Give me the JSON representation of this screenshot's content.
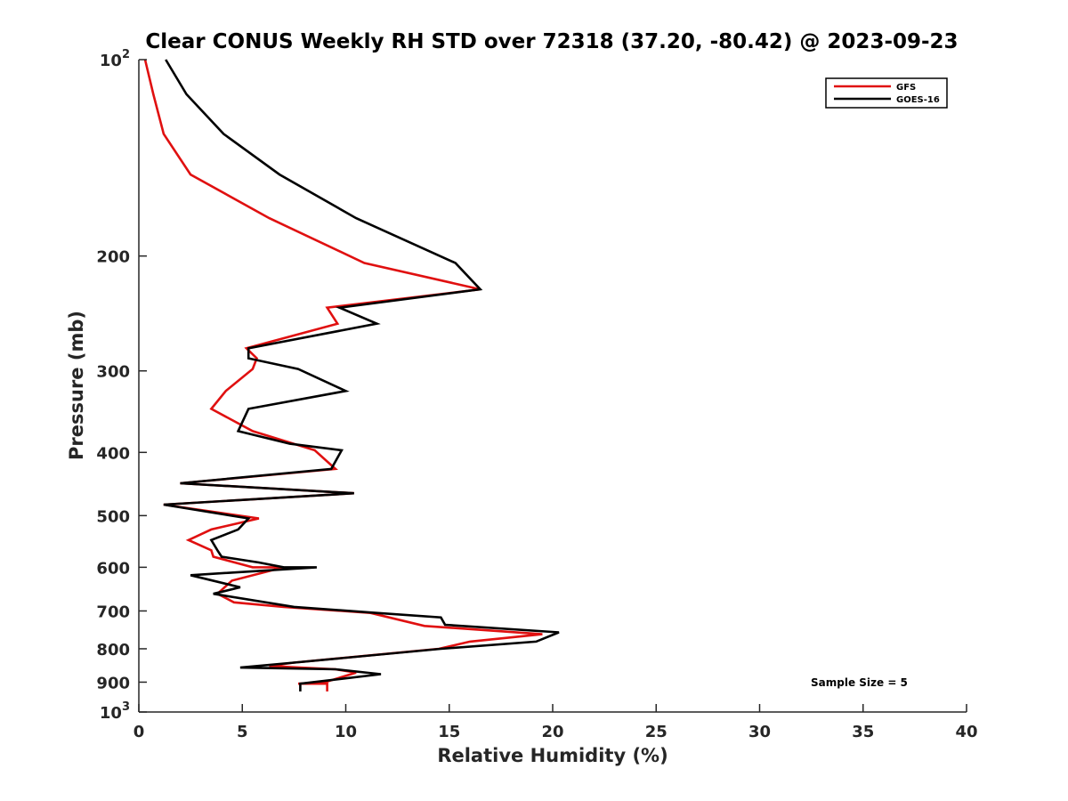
{
  "chart_data": {
    "type": "line",
    "title": "Clear CONUS Weekly RH STD over 72318 (37.20, -80.42) @ 2023-09-23",
    "xlabel": "Relative Humidity (%)",
    "ylabel": "Pressure (mb)",
    "xlim": [
      0,
      40
    ],
    "ylim": [
      100,
      1000
    ],
    "y_scale": "log",
    "y_reversed": true,
    "grid": false,
    "legend_position": "top-right",
    "x_ticks": [
      0,
      5,
      10,
      15,
      20,
      25,
      30,
      35,
      40
    ],
    "y_ticks": [
      100,
      200,
      300,
      400,
      500,
      600,
      700,
      800,
      900,
      1000
    ],
    "y_tick_labels": [
      {
        "base": "10",
        "exp": "2"
      },
      {
        "base": "200"
      },
      {
        "base": "300"
      },
      {
        "base": "400"
      },
      {
        "base": "500"
      },
      {
        "base": "600"
      },
      {
        "base": "700"
      },
      {
        "base": "800"
      },
      {
        "base": "900"
      },
      {
        "base": "10",
        "exp": "3"
      }
    ],
    "annotation": "Sample Size = 5",
    "series": [
      {
        "name": "GFS",
        "color": "#e01010",
        "x": [
          0.3,
          0.7,
          1.2,
          2.5,
          6.3,
          10.9,
          16.5,
          9.1,
          9.6,
          5.2,
          5.7,
          5.5,
          4.2,
          3.5,
          5.5,
          8.5,
          9.5,
          2.0,
          10.4,
          1.2,
          5.8,
          3.5,
          2.4,
          3.5,
          3.6,
          5.5,
          7.0,
          4.5,
          3.8,
          4.6,
          7.0,
          11.2,
          13.8,
          19.5,
          16.0,
          14.5,
          7.5,
          6.3,
          9.5,
          10.5,
          9.0,
          7.7,
          9.1,
          9.1
        ],
        "y": [
          100,
          113,
          130,
          150,
          175,
          205,
          225,
          240,
          254,
          277,
          287,
          298,
          322,
          343,
          371,
          397,
          424,
          446,
          462,
          481,
          505,
          525,
          545,
          565,
          578,
          600,
          600,
          629,
          659,
          679,
          690,
          705,
          738,
          760,
          780,
          800,
          840,
          850,
          860,
          870,
          900,
          905,
          905,
          930
        ]
      },
      {
        "name": "GOES-16",
        "color": "#000000",
        "x": [
          1.3,
          2.3,
          4.1,
          6.8,
          10.5,
          15.3,
          16.5,
          9.7,
          11.5,
          5.3,
          5.3,
          7.7,
          10.0,
          5.3,
          4.8,
          7.3,
          9.8,
          9.3,
          2.0,
          10.4,
          1.2,
          5.3,
          4.8,
          3.5,
          3.8,
          4.0,
          5.8,
          7.0,
          8.6,
          2.5,
          4.9,
          3.6,
          7.5,
          11.5,
          14.6,
          14.8,
          20.3,
          19.2,
          14.6,
          7.5,
          4.9,
          9.5,
          11.7,
          7.8,
          7.8
        ],
        "y": [
          100,
          113,
          130,
          150,
          175,
          205,
          225,
          240,
          254,
          277,
          287,
          298,
          322,
          343,
          371,
          388,
          397,
          424,
          446,
          462,
          481,
          505,
          525,
          545,
          565,
          578,
          590,
          600,
          600,
          617,
          644,
          659,
          690,
          705,
          716,
          735,
          755,
          780,
          800,
          840,
          855,
          860,
          875,
          905,
          930
        ]
      }
    ]
  }
}
